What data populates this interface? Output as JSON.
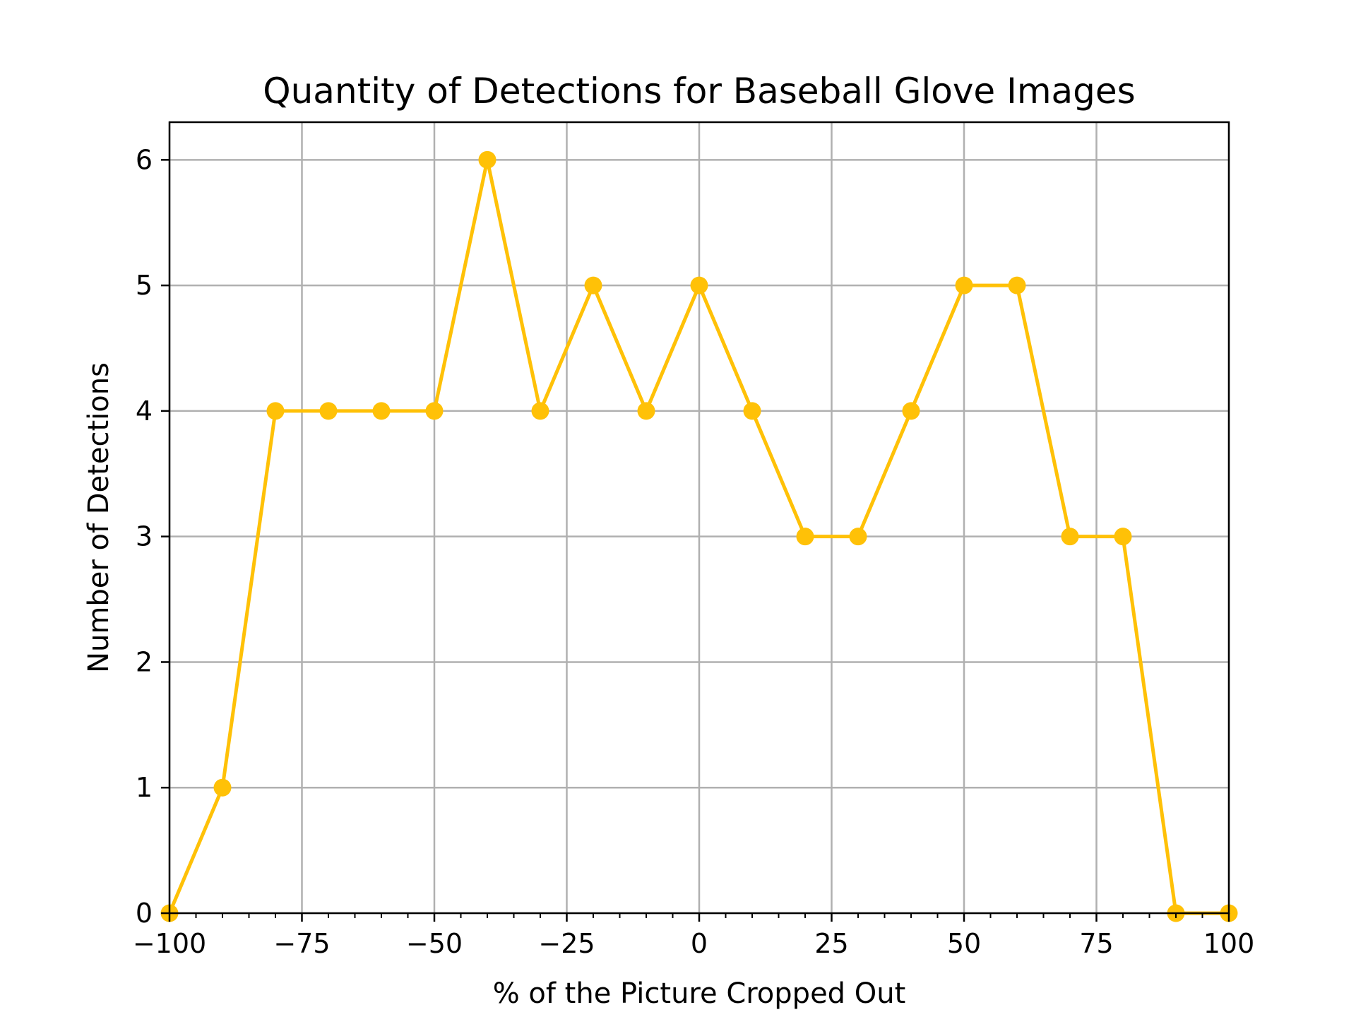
{
  "chart_data": {
    "type": "line",
    "title": "Quantity of Detections for Baseball Glove Images",
    "xlabel": "% of the Picture Cropped Out",
    "ylabel": "Number of Detections",
    "xlim": [
      -100,
      100
    ],
    "ylim": [
      0,
      6.3
    ],
    "x_ticks": [
      -100,
      -75,
      -50,
      -25,
      0,
      25,
      50,
      75,
      100
    ],
    "x_tick_labels": [
      "−100",
      "−75",
      "−50",
      "−25",
      "0",
      "25",
      "50",
      "75",
      "100"
    ],
    "y_ticks": [
      0,
      1,
      2,
      3,
      4,
      5,
      6
    ],
    "y_tick_labels": [
      "0",
      "1",
      "2",
      "3",
      "4",
      "5",
      "6"
    ],
    "grid": true,
    "series": [
      {
        "color": "#ffc107",
        "marker": "circle",
        "points": [
          {
            "x": -100,
            "y": 0
          },
          {
            "x": -90,
            "y": 1
          },
          {
            "x": -80,
            "y": 4
          },
          {
            "x": -70,
            "y": 4
          },
          {
            "x": -60,
            "y": 4
          },
          {
            "x": -50,
            "y": 4
          },
          {
            "x": -40,
            "y": 6
          },
          {
            "x": -30,
            "y": 4
          },
          {
            "x": -20,
            "y": 5
          },
          {
            "x": -10,
            "y": 4
          },
          {
            "x": 0,
            "y": 5
          },
          {
            "x": 10,
            "y": 4
          },
          {
            "x": 20,
            "y": 3
          },
          {
            "x": 30,
            "y": 3
          },
          {
            "x": 40,
            "y": 4
          },
          {
            "x": 50,
            "y": 5
          },
          {
            "x": 60,
            "y": 5
          },
          {
            "x": 70,
            "y": 3
          },
          {
            "x": 80,
            "y": 3
          },
          {
            "x": 90,
            "y": 0
          },
          {
            "x": 100,
            "y": 0
          }
        ]
      }
    ],
    "colors": {
      "grid": "#b0b0b0",
      "axes": "#000000",
      "background": "#ffffff"
    }
  }
}
